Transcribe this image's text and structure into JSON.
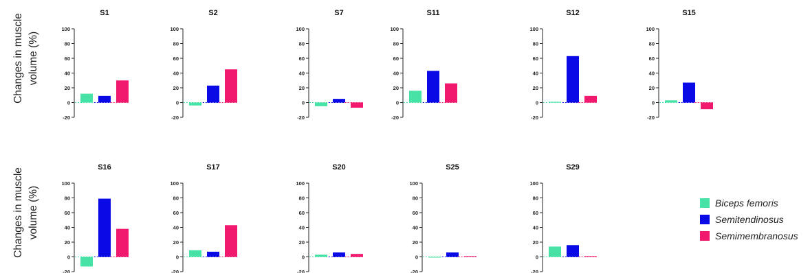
{
  "ylabel_lines": [
    "Changes in muscle",
    "volume (%)"
  ],
  "yticks": [
    "100",
    "80",
    "60",
    "40",
    "20",
    "0",
    "-20"
  ],
  "colors": {
    "biceps": "#47e3a6",
    "semitendinosus": "#0a0ae6",
    "semimembranosus": "#f0196e",
    "axis": "#222222"
  },
  "legend": [
    {
      "label": "Biceps femoris",
      "color": "#47e3a6"
    },
    {
      "label": "Semitendinosus",
      "color": "#0a0ae6"
    },
    {
      "label": "Semimembranosus",
      "color": "#f0196e"
    }
  ],
  "chart_data": [
    {
      "type": "bar",
      "title": "S1",
      "categories": [
        "Biceps femoris",
        "Semitendinosus",
        "Semimembranosus"
      ],
      "values": [
        12,
        9,
        30
      ],
      "ylim": [
        -20,
        100
      ]
    },
    {
      "type": "bar",
      "title": "S2",
      "categories": [
        "Biceps femoris",
        "Semitendinosus",
        "Semimembranosus"
      ],
      "values": [
        -4,
        23,
        45
      ],
      "ylim": [
        -20,
        100
      ]
    },
    {
      "type": "bar",
      "title": "S7",
      "categories": [
        "Biceps femoris",
        "Semitendinosus",
        "Semimembranosus"
      ],
      "values": [
        -5,
        5,
        -7
      ],
      "ylim": [
        -20,
        100
      ]
    },
    {
      "type": "bar",
      "title": "S11",
      "categories": [
        "Biceps femoris",
        "Semitendinosus",
        "Semimembranosus"
      ],
      "values": [
        16,
        43,
        26
      ],
      "ylim": [
        -20,
        100
      ]
    },
    {
      "type": "bar",
      "title": "S12",
      "categories": [
        "Biceps femoris",
        "Semitendinosus",
        "Semimembranosus"
      ],
      "values": [
        1,
        63,
        9
      ],
      "ylim": [
        -20,
        100
      ]
    },
    {
      "type": "bar",
      "title": "S15",
      "categories": [
        "Biceps femoris",
        "Semitendinosus",
        "Semimembranosus"
      ],
      "values": [
        3,
        27,
        -9
      ],
      "ylim": [
        -20,
        100
      ]
    },
    {
      "type": "bar",
      "title": "S16",
      "categories": [
        "Biceps femoris",
        "Semitendinosus",
        "Semimembranosus"
      ],
      "values": [
        -13,
        79,
        38
      ],
      "ylim": [
        -20,
        100
      ]
    },
    {
      "type": "bar",
      "title": "S17",
      "categories": [
        "Biceps femoris",
        "Semitendinosus",
        "Semimembranosus"
      ],
      "values": [
        9,
        7,
        43
      ],
      "ylim": [
        -20,
        100
      ]
    },
    {
      "type": "bar",
      "title": "S20",
      "categories": [
        "Biceps femoris",
        "Semitendinosus",
        "Semimembranosus"
      ],
      "values": [
        3,
        6,
        4
      ],
      "ylim": [
        -20,
        100
      ]
    },
    {
      "type": "bar",
      "title": "S25",
      "categories": [
        "Biceps femoris",
        "Semitendinosus",
        "Semimembranosus"
      ],
      "values": [
        0,
        6,
        1
      ],
      "ylim": [
        -20,
        100
      ]
    },
    {
      "type": "bar",
      "title": "S29",
      "categories": [
        "Biceps femoris",
        "Semitendinosus",
        "Semimembranosus"
      ],
      "values": [
        14,
        16,
        1
      ],
      "ylim": [
        -20,
        100
      ]
    }
  ]
}
